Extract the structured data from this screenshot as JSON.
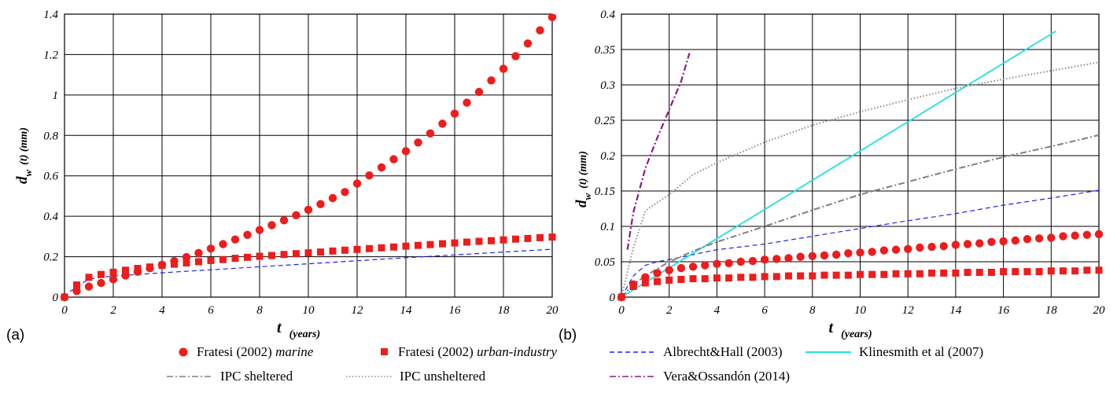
{
  "colors": {
    "red": "#ee1c1c",
    "blue_dash": "#2020ee",
    "cyan": "#22e0e0",
    "gray_dashdot": "#808080",
    "gray_dot": "#8c8c8c",
    "purple": "#8b1a8b"
  },
  "legend": {
    "items": [
      {
        "key": "marine",
        "marker": "circle",
        "color": "#ee1c1c",
        "text": "Fratesi (2002) ",
        "italic": "marine"
      },
      {
        "key": "urban",
        "marker": "square",
        "color": "#ee1c1c",
        "text": "Fratesi (2002) ",
        "italic": "urban-industry"
      },
      {
        "key": "albrecht",
        "marker": "dashed",
        "color": "#2020ee",
        "text": "Albrecht&Hall (2003)",
        "italic": ""
      },
      {
        "key": "klinesmith",
        "marker": "solid",
        "color": "#22e0e0",
        "text": "Klinesmith et al (2007)",
        "italic": ""
      },
      {
        "key": "ipc_sheltered",
        "marker": "dashdot",
        "color": "#808080",
        "text": "IPC sheltered",
        "italic": ""
      },
      {
        "key": "ipc_unsheltered",
        "marker": "dotted",
        "color": "#8c8c8c",
        "text": "IPC unsheltered",
        "italic": ""
      },
      {
        "key": "vera",
        "marker": "dashdot",
        "color": "#8b1a8b",
        "text": "Vera&Ossandón (2014)",
        "italic": ""
      }
    ]
  },
  "chart_data": [
    {
      "type": "scatter",
      "panel_label": "(a)",
      "xlabel_main": "t",
      "xlabel_unit": "(years)",
      "ylabel_main": "d",
      "ylabel_sub": "w",
      "ylabel_rest": "(t) (mm)",
      "xlim": [
        0,
        20
      ],
      "ylim": [
        0,
        1.4
      ],
      "xticks": [
        "0",
        "2",
        "4",
        "6",
        "8",
        "10",
        "12",
        "14",
        "16",
        "18",
        "20"
      ],
      "yticks": [
        "0",
        "0.2",
        "0.4",
        "0.6",
        "0.8",
        "1",
        "1.2",
        "1.4"
      ],
      "grid": true,
      "series": [
        {
          "name": "Fratesi (2002) marine",
          "style": "circle",
          "x": [
            0,
            0.5,
            1,
            1.5,
            2,
            2.5,
            3,
            3.5,
            4,
            4.5,
            5,
            5.5,
            6,
            6.5,
            7,
            7.5,
            8,
            8.5,
            9,
            9.5,
            10,
            10.5,
            11,
            11.5,
            12,
            12.5,
            13,
            13.5,
            14,
            14.5,
            15,
            15.5,
            16,
            16.5,
            17,
            17.5,
            18,
            18.5,
            19,
            19.5,
            20
          ],
          "y": [
            0,
            0.03,
            0.052,
            0.07,
            0.088,
            0.107,
            0.125,
            0.143,
            0.16,
            0.178,
            0.198,
            0.218,
            0.24,
            0.262,
            0.285,
            0.308,
            0.332,
            0.356,
            0.38,
            0.405,
            0.432,
            0.46,
            0.49,
            0.52,
            0.562,
            0.602,
            0.642,
            0.682,
            0.722,
            0.765,
            0.81,
            0.858,
            0.908,
            0.962,
            1.015,
            1.072,
            1.13,
            1.192,
            1.255,
            1.32,
            1.385
          ]
        },
        {
          "name": "Fratesi (2002) urban-industry",
          "style": "square",
          "x": [
            0,
            0.5,
            1,
            1.5,
            2,
            2.5,
            3,
            3.5,
            4,
            4.5,
            5,
            5.5,
            6,
            6.5,
            7,
            7.5,
            8,
            8.5,
            9,
            9.5,
            10,
            10.5,
            11,
            11.5,
            12,
            12.5,
            13,
            13.5,
            14,
            14.5,
            15,
            15.5,
            16,
            16.5,
            17,
            17.5,
            18,
            18.5,
            19,
            19.5,
            20
          ],
          "y": [
            0,
            0.06,
            0.098,
            0.112,
            0.123,
            0.133,
            0.142,
            0.149,
            0.157,
            0.163,
            0.169,
            0.175,
            0.181,
            0.186,
            0.192,
            0.197,
            0.202,
            0.206,
            0.211,
            0.215,
            0.219,
            0.223,
            0.228,
            0.232,
            0.236,
            0.24,
            0.244,
            0.248,
            0.252,
            0.256,
            0.26,
            0.264,
            0.268,
            0.272,
            0.276,
            0.279,
            0.283,
            0.287,
            0.29,
            0.294,
            0.297
          ]
        },
        {
          "name": "Albrecht&Hall (2003)",
          "style": "dashed",
          "x": [
            0,
            0.25,
            0.5,
            0.75,
            1,
            1.5,
            2,
            3,
            4,
            5,
            6,
            8,
            10,
            12,
            14,
            16,
            18,
            20
          ],
          "y": [
            0,
            0.03,
            0.05,
            0.07,
            0.09,
            0.098,
            0.104,
            0.112,
            0.12,
            0.128,
            0.135,
            0.15,
            0.165,
            0.18,
            0.195,
            0.209,
            0.223,
            0.237
          ]
        }
      ]
    },
    {
      "type": "line",
      "panel_label": "(b)",
      "xlabel_main": "t",
      "xlabel_unit": "(years)",
      "ylabel_main": "d",
      "ylabel_sub": "w",
      "ylabel_rest": "(t) (mm)",
      "xlim": [
        0,
        20
      ],
      "ylim": [
        0,
        0.4
      ],
      "xticks": [
        "0",
        "2",
        "4",
        "6",
        "8",
        "10",
        "12",
        "14",
        "16",
        "18",
        "20"
      ],
      "yticks": [
        "0",
        "0.05",
        "0.1",
        "0.15",
        "0.2",
        "0.25",
        "0.3",
        "0.35",
        "0.4"
      ],
      "grid": true,
      "series": [
        {
          "name": "Fratesi (2002) marine",
          "style": "circle",
          "x": [
            0,
            0.5,
            1,
            1.5,
            2,
            2.5,
            3,
            3.5,
            4,
            4.5,
            5,
            5.5,
            6,
            6.5,
            7,
            7.5,
            8,
            8.5,
            9,
            9.5,
            10,
            10.5,
            11,
            11.5,
            12,
            12.5,
            13,
            13.5,
            14,
            14.5,
            15,
            15.5,
            16,
            16.5,
            17,
            17.5,
            18,
            18.5,
            19,
            19.5,
            20
          ],
          "y": [
            0,
            0.018,
            0.028,
            0.034,
            0.038,
            0.041,
            0.043,
            0.045,
            0.047,
            0.048,
            0.05,
            0.051,
            0.053,
            0.054,
            0.055,
            0.057,
            0.058,
            0.059,
            0.06,
            0.062,
            0.063,
            0.064,
            0.066,
            0.067,
            0.068,
            0.07,
            0.071,
            0.072,
            0.074,
            0.075,
            0.076,
            0.078,
            0.079,
            0.08,
            0.082,
            0.083,
            0.084,
            0.086,
            0.087,
            0.088,
            0.089
          ]
        },
        {
          "name": "Fratesi (2002) urban-industry",
          "style": "square",
          "x": [
            0,
            0.5,
            1,
            1.5,
            2,
            2.5,
            3,
            3.5,
            4,
            4.5,
            5,
            5.5,
            6,
            6.5,
            7,
            7.5,
            8,
            8.5,
            9,
            9.5,
            10,
            10.5,
            11,
            11.5,
            12,
            12.5,
            13,
            13.5,
            14,
            14.5,
            15,
            15.5,
            16,
            16.5,
            17,
            17.5,
            18,
            18.5,
            19,
            19.5,
            20
          ],
          "y": [
            0,
            0.015,
            0.02,
            0.022,
            0.024,
            0.025,
            0.026,
            0.026,
            0.027,
            0.027,
            0.028,
            0.028,
            0.029,
            0.029,
            0.03,
            0.03,
            0.03,
            0.031,
            0.031,
            0.031,
            0.032,
            0.032,
            0.032,
            0.033,
            0.033,
            0.033,
            0.034,
            0.034,
            0.034,
            0.035,
            0.035,
            0.035,
            0.036,
            0.036,
            0.036,
            0.036,
            0.037,
            0.037,
            0.037,
            0.038,
            0.038
          ]
        },
        {
          "name": "Albrecht&Hall (2003)",
          "style": "dashed",
          "x": [
            0,
            0.5,
            1,
            1.5,
            2,
            4,
            6,
            8,
            10,
            12,
            14,
            16,
            18,
            20
          ],
          "y": [
            0,
            0.03,
            0.045,
            0.05,
            0.053,
            0.067,
            0.075,
            0.086,
            0.097,
            0.108,
            0.118,
            0.13,
            0.14,
            0.151
          ]
        },
        {
          "name": "Klinesmith et al (2007)",
          "style": "solid",
          "x": [
            0,
            18.2
          ],
          "y": [
            0,
            0.376
          ]
        },
        {
          "name": "IPC sheltered",
          "style": "dashdot",
          "x": [
            0,
            0.5,
            1,
            2,
            3,
            4,
            6,
            8,
            10,
            12,
            14,
            16,
            18,
            20
          ],
          "y": [
            0,
            0.018,
            0.03,
            0.05,
            0.065,
            0.078,
            0.1,
            0.123,
            0.145,
            0.163,
            0.181,
            0.198,
            0.213,
            0.229
          ]
        },
        {
          "name": "IPC unsheltered",
          "style": "dotted",
          "x": [
            0,
            0.5,
            1,
            2,
            3,
            4,
            6,
            8,
            10,
            12,
            14,
            16,
            18,
            20
          ],
          "y": [
            0,
            0.07,
            0.122,
            0.145,
            0.173,
            0.19,
            0.219,
            0.243,
            0.262,
            0.279,
            0.295,
            0.308,
            0.32,
            0.332
          ]
        },
        {
          "name": "Vera&Ossandón (2014)",
          "style": "dashdot",
          "x": [
            0.25,
            0.5,
            1,
            1.5,
            2,
            2.5,
            2.85
          ],
          "y": [
            0.067,
            0.12,
            0.182,
            0.225,
            0.265,
            0.305,
            0.345
          ]
        }
      ]
    }
  ]
}
